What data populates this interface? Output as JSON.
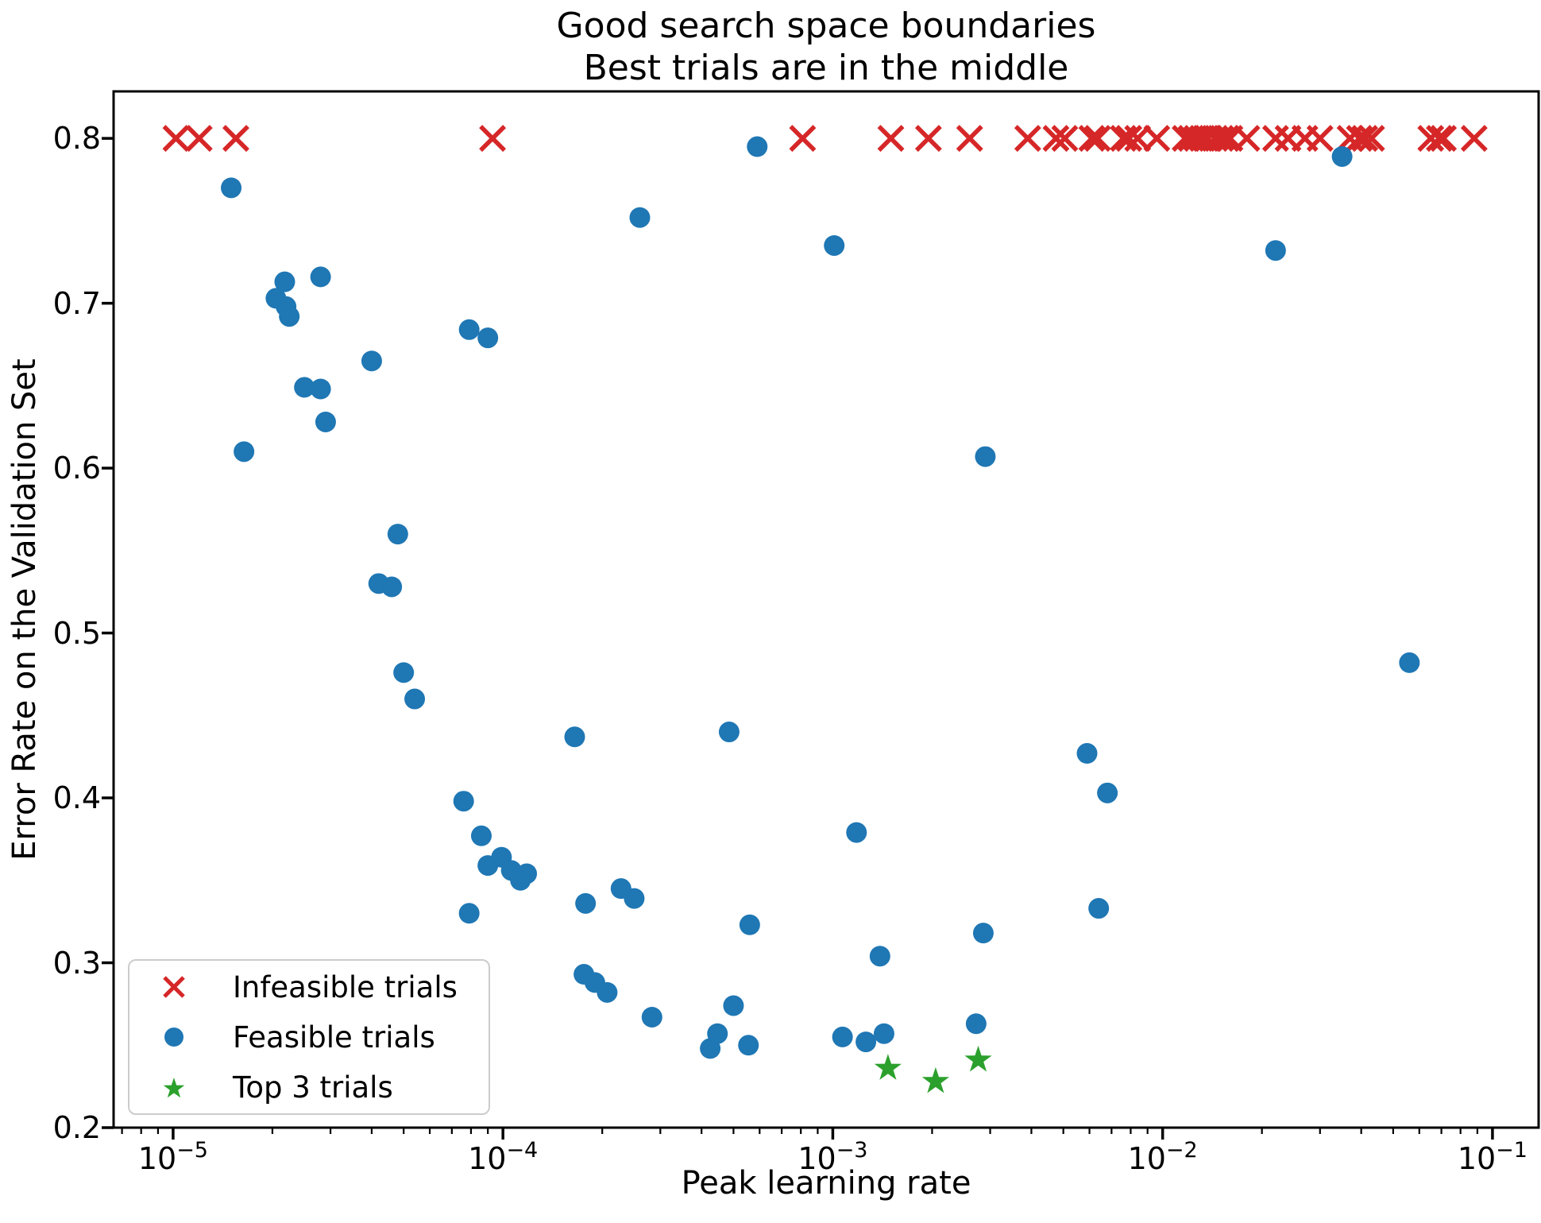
{
  "title": {
    "line1": "Good search space boundaries",
    "line2": "Best trials are in the middle"
  },
  "axes": {
    "xlabel": "Peak learning rate",
    "ylabel": "Error Rate on the Validation Set",
    "x_tick_exponents": [
      -5,
      -4,
      -3,
      -2,
      -1
    ],
    "y_tick_labels": [
      "0.8",
      "0.7",
      "0.6",
      "0.5",
      "0.4",
      "0.3",
      "0.2"
    ]
  },
  "legend": {
    "items": [
      {
        "label": "Infeasible trials",
        "marker": "x",
        "color": "#d62728"
      },
      {
        "label": "Feasible trials",
        "marker": "circle",
        "color": "#1f77b4"
      },
      {
        "label": "Top 3 trials",
        "marker": "star",
        "color": "#2ca02c"
      }
    ]
  },
  "colors": {
    "infeasible": "#d62728",
    "feasible": "#1f77b4",
    "top3": "#2ca02c",
    "spine": "#000000",
    "legend_border": "#cccccc"
  },
  "chart_data": {
    "type": "scatter",
    "title": "Good search space boundaries\nBest trials are in the middle",
    "xlabel": "Peak learning rate",
    "ylabel": "Error Rate on the Validation Set",
    "xscale": "log",
    "xlim": [
      6.6e-06,
      0.138
    ],
    "ylim": [
      0.2,
      0.8285
    ],
    "grid": false,
    "legend_position": "lower left",
    "series": [
      {
        "name": "Infeasible trials",
        "marker": "x",
        "color": "#d62728",
        "y_constant": 0.8,
        "points": [
          [
            1.02e-05,
            0.8
          ],
          [
            1.2e-05,
            0.8
          ],
          [
            1.55e-05,
            0.8
          ],
          [
            9.3e-05,
            0.8
          ],
          [
            0.00081,
            0.8
          ],
          [
            0.0015,
            0.8
          ],
          [
            0.00195,
            0.8
          ],
          [
            0.0026,
            0.8
          ],
          [
            0.0039,
            0.8
          ],
          [
            0.00475,
            0.8
          ],
          [
            0.00505,
            0.8
          ],
          [
            0.0061,
            0.8
          ],
          [
            0.00635,
            0.8
          ],
          [
            0.0076,
            0.8
          ],
          [
            0.0079,
            0.8
          ],
          [
            0.0084,
            0.8
          ],
          [
            0.0096,
            0.8
          ],
          [
            0.0117,
            0.8
          ],
          [
            0.0122,
            0.8
          ],
          [
            0.0127,
            0.8
          ],
          [
            0.0132,
            0.8
          ],
          [
            0.0137,
            0.8
          ],
          [
            0.0144,
            0.8
          ],
          [
            0.015,
            0.8
          ],
          [
            0.0156,
            0.8
          ],
          [
            0.016,
            0.8
          ],
          [
            0.018,
            0.8
          ],
          [
            0.022,
            0.8
          ],
          [
            0.024,
            0.8
          ],
          [
            0.027,
            0.8
          ],
          [
            0.03,
            0.8
          ],
          [
            0.037,
            0.8
          ],
          [
            0.0395,
            0.8
          ],
          [
            0.041,
            0.8
          ],
          [
            0.043,
            0.8
          ],
          [
            0.065,
            0.8
          ],
          [
            0.069,
            0.8
          ],
          [
            0.071,
            0.8
          ],
          [
            0.088,
            0.8
          ]
        ]
      },
      {
        "name": "Feasible trials",
        "marker": "circle",
        "color": "#1f77b4",
        "points": [
          [
            1.5e-05,
            0.77
          ],
          [
            1.64e-05,
            0.61
          ],
          [
            2.05e-05,
            0.703
          ],
          [
            2.18e-05,
            0.713
          ],
          [
            2.2e-05,
            0.698
          ],
          [
            2.25e-05,
            0.692
          ],
          [
            2.5e-05,
            0.649
          ],
          [
            2.8e-05,
            0.648
          ],
          [
            2.8e-05,
            0.716
          ],
          [
            2.9e-05,
            0.628
          ],
          [
            4e-05,
            0.665
          ],
          [
            4.2e-05,
            0.53
          ],
          [
            4.6e-05,
            0.528
          ],
          [
            4.8e-05,
            0.56
          ],
          [
            5e-05,
            0.476
          ],
          [
            5.4e-05,
            0.46
          ],
          [
            7.6e-05,
            0.398
          ],
          [
            7.9e-05,
            0.684
          ],
          [
            7.9e-05,
            0.33
          ],
          [
            8.6e-05,
            0.377
          ],
          [
            9e-05,
            0.679
          ],
          [
            9e-05,
            0.359
          ],
          [
            9.9e-05,
            0.364
          ],
          [
            0.000106,
            0.356
          ],
          [
            0.000113,
            0.35
          ],
          [
            0.000118,
            0.354
          ],
          [
            0.000165,
            0.437
          ],
          [
            0.000178,
            0.336
          ],
          [
            0.000176,
            0.293
          ],
          [
            0.00019,
            0.288
          ],
          [
            0.000207,
            0.282
          ],
          [
            0.000228,
            0.345
          ],
          [
            0.00025,
            0.339
          ],
          [
            0.00026,
            0.752
          ],
          [
            0.000283,
            0.267
          ],
          [
            0.000425,
            0.248
          ],
          [
            0.000447,
            0.257
          ],
          [
            0.000485,
            0.44
          ],
          [
            0.0005,
            0.274
          ],
          [
            0.000555,
            0.25
          ],
          [
            0.00056,
            0.323
          ],
          [
            0.00059,
            0.795
          ],
          [
            0.00101,
            0.735
          ],
          [
            0.00107,
            0.255
          ],
          [
            0.00118,
            0.379
          ],
          [
            0.00126,
            0.252
          ],
          [
            0.00139,
            0.304
          ],
          [
            0.00143,
            0.257
          ],
          [
            0.00272,
            0.263
          ],
          [
            0.00286,
            0.318
          ],
          [
            0.0029,
            0.607
          ],
          [
            0.0059,
            0.427
          ],
          [
            0.0064,
            0.333
          ],
          [
            0.0068,
            0.403
          ],
          [
            0.022,
            0.732
          ],
          [
            0.035,
            0.789
          ],
          [
            0.056,
            0.482
          ]
        ]
      },
      {
        "name": "Top 3 trials",
        "marker": "star",
        "color": "#2ca02c",
        "points": [
          [
            0.00147,
            0.236
          ],
          [
            0.00205,
            0.228
          ],
          [
            0.00276,
            0.241
          ]
        ]
      }
    ]
  }
}
